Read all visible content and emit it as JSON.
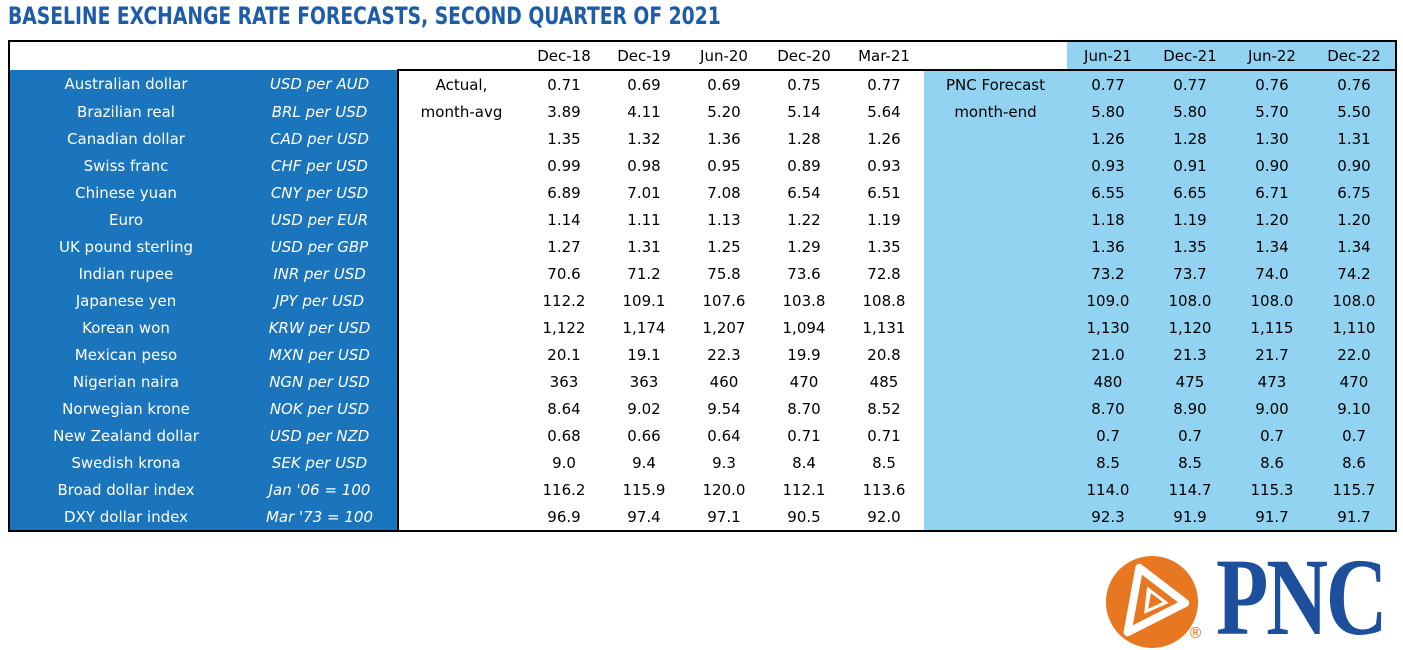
{
  "chart_data": {
    "type": "table",
    "title": "BASELINE EXCHANGE RATE FORECASTS, SECOND QUARTER OF 2021",
    "groups": {
      "actual": {
        "label_line1": "Actual,",
        "label_line2": "month-avg",
        "columns": [
          "Dec-18",
          "Dec-19",
          "Jun-20",
          "Dec-20",
          "Mar-21"
        ]
      },
      "forecast": {
        "label_line1": "PNC Forecast",
        "label_line2": "month-end",
        "columns": [
          "Jun-21",
          "Dec-21",
          "Jun-22",
          "Dec-22"
        ]
      }
    },
    "rows": [
      {
        "name": "Australian dollar",
        "unit": "USD per AUD",
        "actual": [
          "0.71",
          "0.69",
          "0.69",
          "0.75",
          "0.77"
        ],
        "forecast": [
          "0.77",
          "0.77",
          "0.76",
          "0.76"
        ]
      },
      {
        "name": "Brazilian real",
        "unit": "BRL per USD",
        "actual": [
          "3.89",
          "4.11",
          "5.20",
          "5.14",
          "5.64"
        ],
        "forecast": [
          "5.80",
          "5.80",
          "5.70",
          "5.50"
        ]
      },
      {
        "name": "Canadian dollar",
        "unit": "CAD per USD",
        "actual": [
          "1.35",
          "1.32",
          "1.36",
          "1.28",
          "1.26"
        ],
        "forecast": [
          "1.26",
          "1.28",
          "1.30",
          "1.31"
        ]
      },
      {
        "name": "Swiss franc",
        "unit": "CHF per USD",
        "actual": [
          "0.99",
          "0.98",
          "0.95",
          "0.89",
          "0.93"
        ],
        "forecast": [
          "0.93",
          "0.91",
          "0.90",
          "0.90"
        ]
      },
      {
        "name": "Chinese yuan",
        "unit": "CNY per USD",
        "actual": [
          "6.89",
          "7.01",
          "7.08",
          "6.54",
          "6.51"
        ],
        "forecast": [
          "6.55",
          "6.65",
          "6.71",
          "6.75"
        ]
      },
      {
        "name": "Euro",
        "unit": "USD per EUR",
        "actual": [
          "1.14",
          "1.11",
          "1.13",
          "1.22",
          "1.19"
        ],
        "forecast": [
          "1.18",
          "1.19",
          "1.20",
          "1.20"
        ]
      },
      {
        "name": "UK pound sterling",
        "unit": "USD per GBP",
        "actual": [
          "1.27",
          "1.31",
          "1.25",
          "1.29",
          "1.35"
        ],
        "forecast": [
          "1.36",
          "1.35",
          "1.34",
          "1.34"
        ]
      },
      {
        "name": "Indian rupee",
        "unit": "INR per USD",
        "actual": [
          "70.6",
          "71.2",
          "75.8",
          "73.6",
          "72.8"
        ],
        "forecast": [
          "73.2",
          "73.7",
          "74.0",
          "74.2"
        ]
      },
      {
        "name": "Japanese yen",
        "unit": "JPY per USD",
        "actual": [
          "112.2",
          "109.1",
          "107.6",
          "103.8",
          "108.8"
        ],
        "forecast": [
          "109.0",
          "108.0",
          "108.0",
          "108.0"
        ]
      },
      {
        "name": "Korean won",
        "unit": "KRW per USD",
        "actual": [
          "1,122",
          "1,174",
          "1,207",
          "1,094",
          "1,131"
        ],
        "forecast": [
          "1,130",
          "1,120",
          "1,115",
          "1,110"
        ]
      },
      {
        "name": "Mexican peso",
        "unit": "MXN per USD",
        "actual": [
          "20.1",
          "19.1",
          "22.3",
          "19.9",
          "20.8"
        ],
        "forecast": [
          "21.0",
          "21.3",
          "21.7",
          "22.0"
        ]
      },
      {
        "name": "Nigerian naira",
        "unit": "NGN per USD",
        "actual": [
          "363",
          "363",
          "460",
          "470",
          "485"
        ],
        "forecast": [
          "480",
          "475",
          "473",
          "470"
        ]
      },
      {
        "name": "Norwegian krone",
        "unit": "NOK per USD",
        "actual": [
          "8.64",
          "9.02",
          "9.54",
          "8.70",
          "8.52"
        ],
        "forecast": [
          "8.70",
          "8.90",
          "9.00",
          "9.10"
        ]
      },
      {
        "name": "New Zealand dollar",
        "unit": "USD per NZD",
        "actual": [
          "0.68",
          "0.66",
          "0.64",
          "0.71",
          "0.71"
        ],
        "forecast": [
          "0.7",
          "0.7",
          "0.7",
          "0.7"
        ]
      },
      {
        "name": "Swedish krona",
        "unit": "SEK per USD",
        "actual": [
          "9.0",
          "9.4",
          "9.3",
          "8.4",
          "8.5"
        ],
        "forecast": [
          "8.5",
          "8.5",
          "8.6",
          "8.6"
        ]
      },
      {
        "name": "Broad dollar index",
        "unit": "Jan '06 = 100",
        "actual": [
          "116.2",
          "115.9",
          "120.0",
          "112.1",
          "113.6"
        ],
        "forecast": [
          "114.0",
          "114.7",
          "115.3",
          "115.7"
        ]
      },
      {
        "name": "DXY dollar index",
        "unit": "Mar '73 = 100",
        "actual": [
          "96.9",
          "97.4",
          "97.1",
          "90.5",
          "92.0"
        ],
        "forecast": [
          "92.3",
          "91.9",
          "91.7",
          "91.7"
        ]
      }
    ]
  },
  "logo": {
    "wordmark": "PNC",
    "registered": "®"
  },
  "colors": {
    "panel_blue": "#1b75bc",
    "light_blue": "#92d3f2",
    "title_blue": "#1c5ca8",
    "logo_orange": "#e87722",
    "logo_blue": "#1e4f9c",
    "border_black": "#000000"
  }
}
